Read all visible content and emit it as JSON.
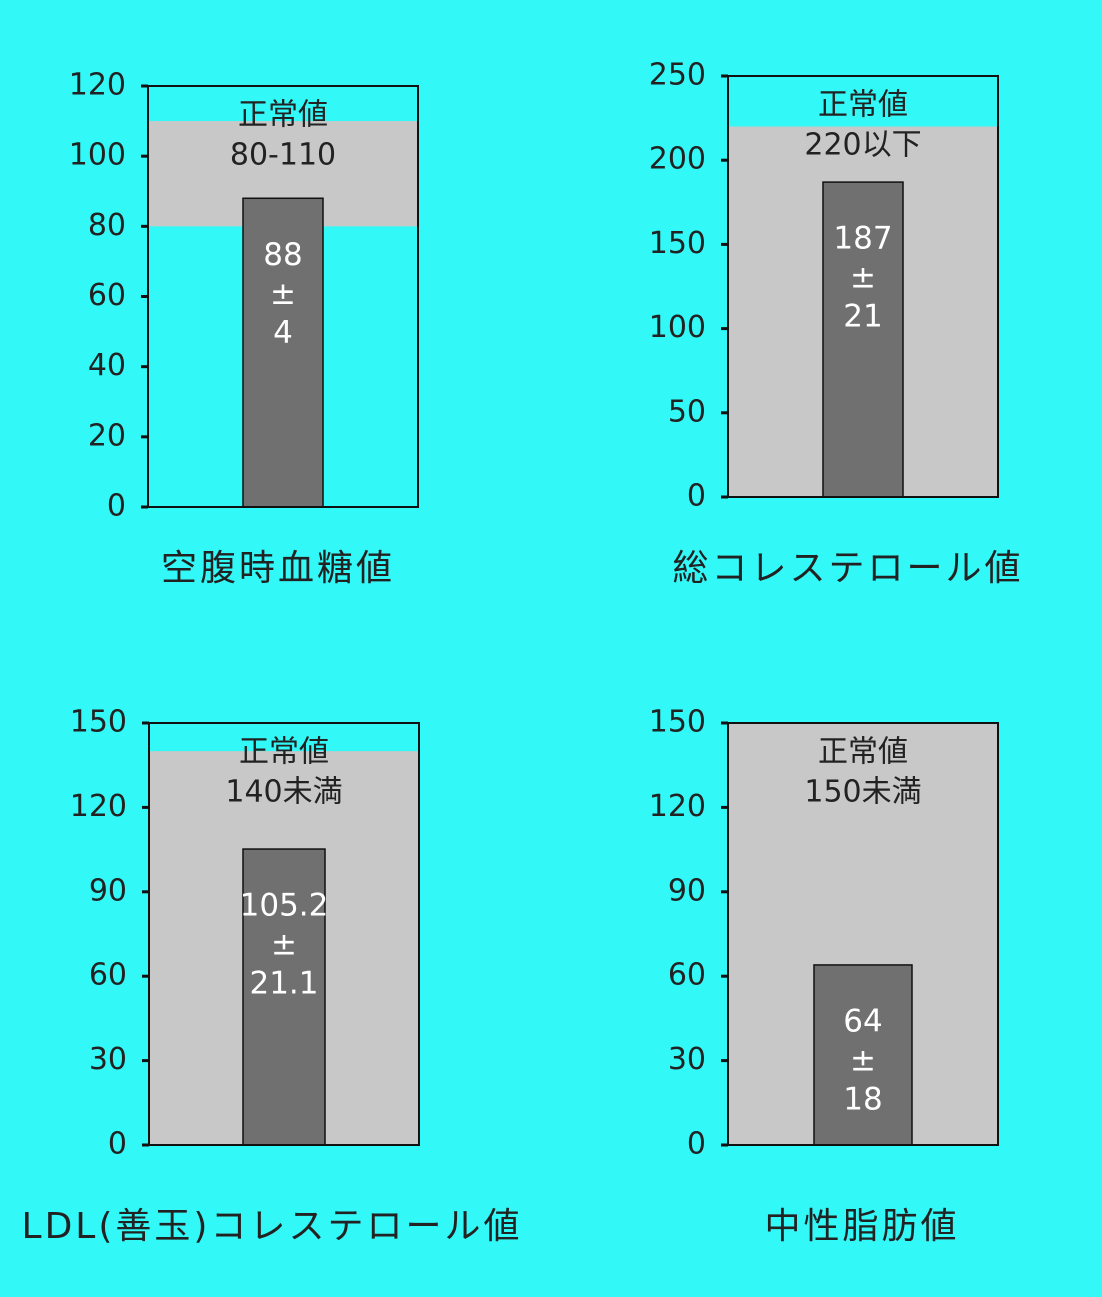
{
  "chart_data": [
    {
      "type": "bar",
      "title": "空腹時血糖値",
      "values": [
        88
      ],
      "errors": [
        4
      ],
      "error_symbol": "±",
      "ylim": [
        0,
        120
      ],
      "yticks": [
        0,
        20,
        40,
        60,
        80,
        100,
        120
      ],
      "normal": {
        "title": "正常値",
        "label": "80-110",
        "range": [
          80,
          110
        ]
      },
      "color": "#707070",
      "band_color": "#c8c8c8"
    },
    {
      "type": "bar",
      "title": "総コレステロール値",
      "values": [
        187
      ],
      "errors": [
        21
      ],
      "error_symbol": "±",
      "ylim": [
        0,
        250
      ],
      "yticks": [
        0,
        50,
        100,
        150,
        200,
        250
      ],
      "normal": {
        "title": "正常値",
        "label": "220以下",
        "range": [
          0,
          220
        ]
      },
      "color": "#707070",
      "band_color": "#c8c8c8"
    },
    {
      "type": "bar",
      "title": "LDL(善玉)コレステロール値",
      "values": [
        105.2
      ],
      "errors": [
        21.1
      ],
      "error_symbol": "±",
      "ylim": [
        0,
        150
      ],
      "yticks": [
        0,
        30,
        60,
        90,
        120,
        150
      ],
      "normal": {
        "title": "正常値",
        "label": "140未満",
        "range": [
          0,
          140
        ]
      },
      "color": "#707070",
      "band_color": "#c8c8c8"
    },
    {
      "type": "bar",
      "title": "中性脂肪値",
      "values": [
        64
      ],
      "errors": [
        18
      ],
      "error_symbol": "±",
      "ylim": [
        0,
        150
      ],
      "yticks": [
        0,
        30,
        60,
        90,
        120,
        150
      ],
      "normal": {
        "title": "正常値",
        "label": "150未満",
        "range": [
          0,
          150
        ]
      },
      "color": "#707070",
      "band_color": "#c8c8c8"
    }
  ]
}
